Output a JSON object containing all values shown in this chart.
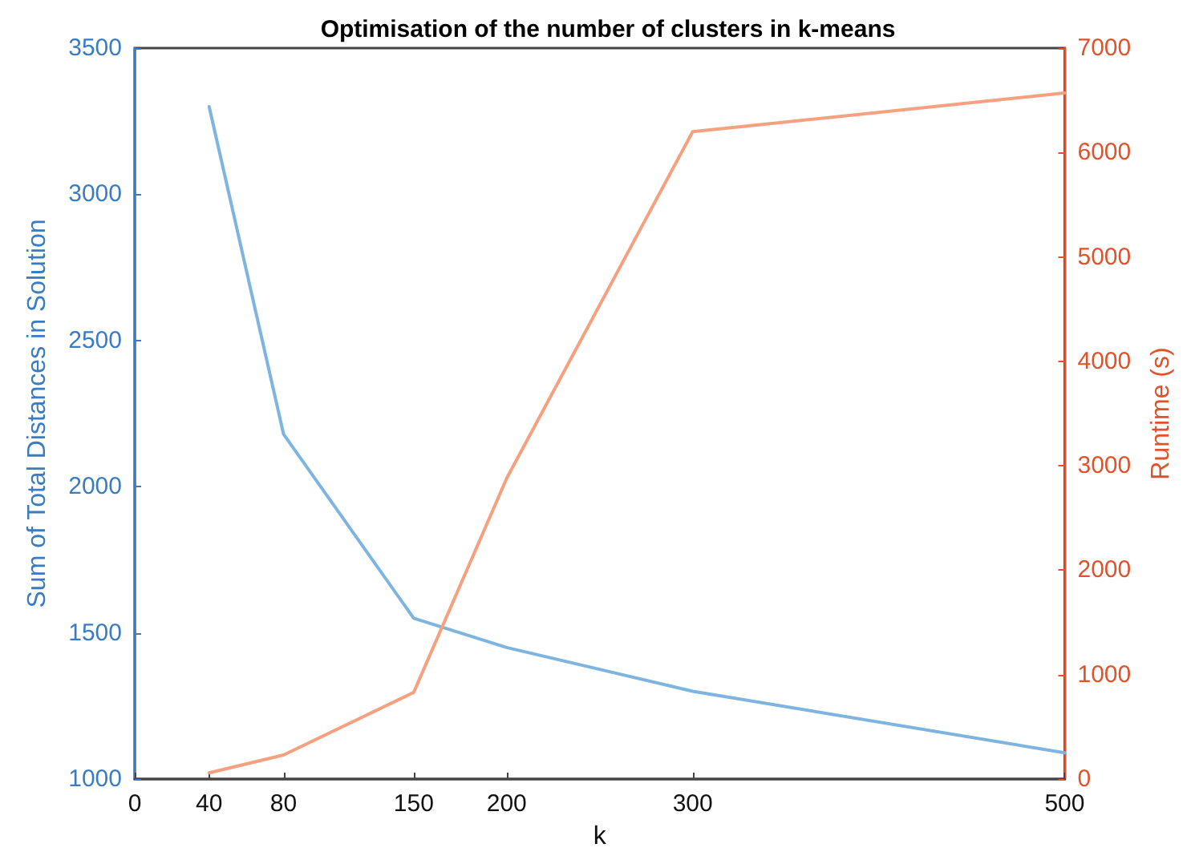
{
  "chart_data": {
    "type": "line",
    "title": "Optimisation of the number of clusters in k-means",
    "xlabel": "k",
    "ylabel": "Sum of Total Distances in Solution",
    "y2label": "Runtime (s)",
    "x": [
      40,
      80,
      150,
      200,
      300,
      500
    ],
    "series": [
      {
        "color": "#7db4e0",
        "values": [
          3300,
          2180,
          1550,
          1450,
          1300,
          1090
        ]
      },
      {
        "color": "#f5a07e",
        "axis": "y2",
        "values": [
          60,
          230,
          830,
          2880,
          6200,
          6570
        ]
      }
    ],
    "xlim": [
      0,
      500
    ],
    "xticks": [
      0,
      40,
      80,
      150,
      200,
      300,
      500
    ],
    "ylim": [
      1000,
      3500
    ],
    "yticks": [
      1000,
      1500,
      2000,
      2500,
      3000,
      3500
    ],
    "y2lim": [
      0,
      7000
    ],
    "y2ticks": [
      0,
      1000,
      2000,
      3000,
      4000,
      5000,
      6000,
      7000
    ],
    "grid": false,
    "marker": "none",
    "line_style": "solid"
  }
}
